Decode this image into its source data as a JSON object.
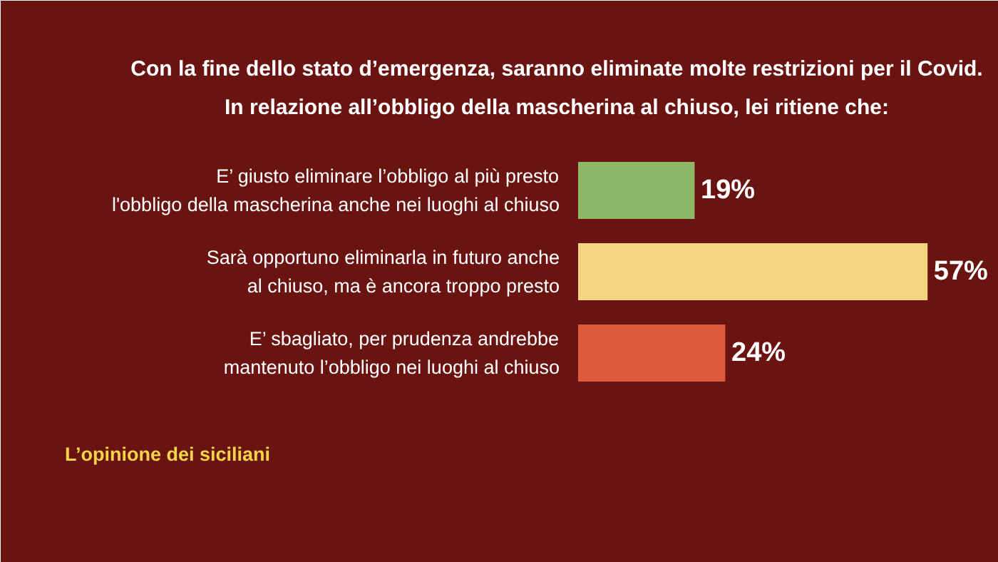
{
  "chart_data": {
    "type": "bar",
    "orientation": "horizontal",
    "title": "Con la fine dello stato d’emergenza, saranno eliminate molte restrizioni per il Covid.",
    "subtitle": "In relazione all’obbligo della mascherina al chiuso, lei ritiene che:",
    "categories": [
      "E’ giusto eliminare l’obbligo al più presto l'obbligo della mascherina anche nei luoghi al chiuso",
      "Sarà opportuno eliminarla in futuro anche al chiuso, ma è ancora troppo presto",
      "E’ sbagliato, per prudenza andrebbe mantenuto l’obbligo nei luoghi al chiuso"
    ],
    "values": [
      19,
      57,
      24
    ],
    "value_labels": [
      "19%",
      "57%",
      "24%"
    ],
    "colors": [
      "#8cb868",
      "#f4d680",
      "#de5a3c"
    ],
    "annotations": [
      "L’opinione dei siciliani"
    ]
  }
}
